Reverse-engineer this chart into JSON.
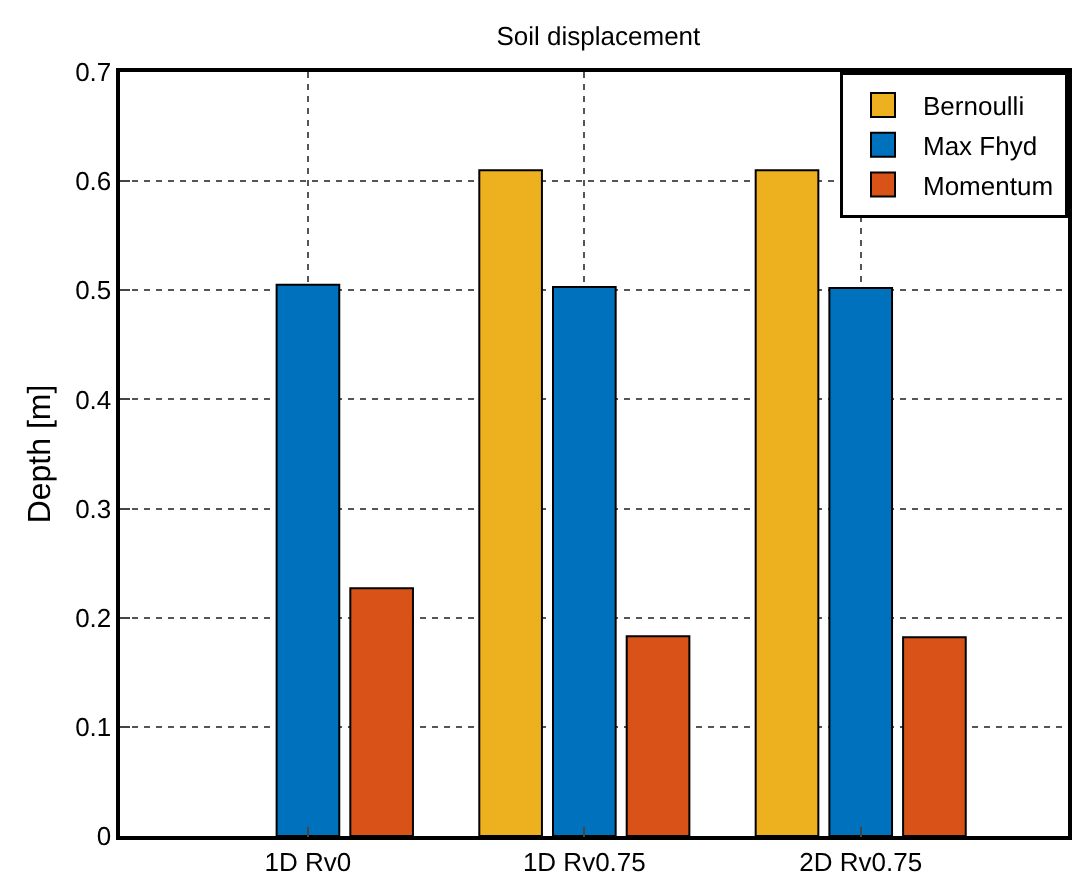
{
  "chart_data": {
    "type": "bar",
    "title": "Soil displacement",
    "ylabel": "Depth [m]",
    "categories": [
      "1D Rv0",
      "1D Rv0.75",
      "2D Rv0.75"
    ],
    "series": [
      {
        "name": "Bernoulli",
        "color": "#edb120",
        "values": [
          null,
          0.61,
          0.61
        ]
      },
      {
        "name": "Max Fhyd",
        "color": "#0072bd",
        "values": [
          0.505,
          0.503,
          0.502
        ]
      },
      {
        "name": "Momentum",
        "color": "#d95319",
        "values": [
          0.227,
          0.183,
          0.182
        ]
      }
    ],
    "ylim": [
      0,
      0.7
    ],
    "yticks": [
      0,
      0.1,
      0.2,
      0.3,
      0.4,
      0.5,
      0.6,
      0.7
    ],
    "grid": true,
    "legend": "top right"
  }
}
